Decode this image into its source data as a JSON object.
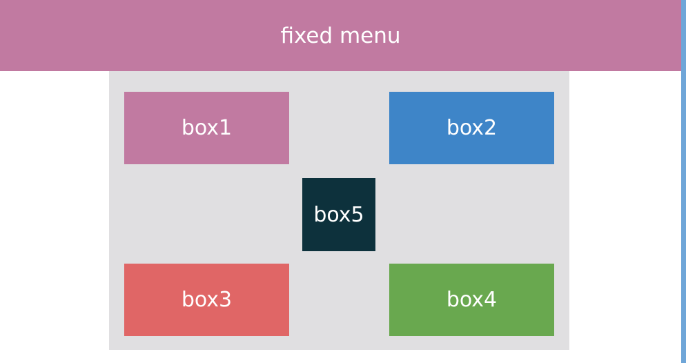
{
  "menu": {
    "label": "fixed menu",
    "color": "#c17aa1"
  },
  "container": {
    "background": "#e0dfe1"
  },
  "boxes": [
    {
      "label": "box1",
      "color": "#c17aa1"
    },
    {
      "label": "box2",
      "color": "#3e85c8"
    },
    {
      "label": "box3",
      "color": "#e06666"
    },
    {
      "label": "box4",
      "color": "#69a84f"
    },
    {
      "label": "box5",
      "color": "#0d313c"
    }
  ],
  "scrollbar": {
    "color": "#6fa6d8"
  }
}
